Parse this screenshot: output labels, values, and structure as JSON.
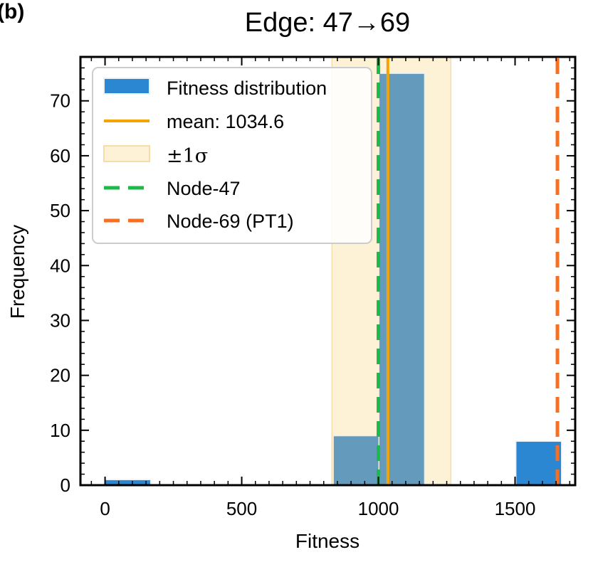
{
  "panel_label": "(b)",
  "chart_data": {
    "type": "bar",
    "title": "Edge: 47→69",
    "xlabel": "Fitness",
    "ylabel": "Frequency",
    "xlim": [
      -90,
      1720
    ],
    "ylim": [
      0,
      78
    ],
    "xticks": [
      0,
      500,
      1000,
      1500
    ],
    "yticks": [
      0,
      10,
      20,
      30,
      40,
      50,
      60,
      70
    ],
    "bin_width": 167,
    "bins": [
      {
        "left": 0,
        "count": 1
      },
      {
        "left": 167,
        "count": 0
      },
      {
        "left": 334,
        "count": 0
      },
      {
        "left": 501,
        "count": 0
      },
      {
        "left": 668,
        "count": 0
      },
      {
        "left": 835,
        "count": 9
      },
      {
        "left": 1002,
        "count": 75
      },
      {
        "left": 1169,
        "count": 0
      },
      {
        "left": 1336,
        "count": 0
      },
      {
        "left": 1503,
        "count": 8
      }
    ],
    "mean": 1034.6,
    "sigma_band": [
      830,
      1265
    ],
    "node_47": 1000,
    "node_69": 1655,
    "colors": {
      "bars": "#2b87d1",
      "mean": "#f5a300",
      "sigma": "#fdf1d6",
      "node_47": "#1db94a",
      "node_69": "#f76f1f"
    },
    "legend": {
      "placement": "top-left",
      "entries": [
        {
          "key": "hist",
          "label": "Fitness distribution"
        },
        {
          "key": "mean",
          "label": "mean: 1034.6"
        },
        {
          "key": "sigma",
          "label": "±1σ"
        },
        {
          "key": "node47",
          "label": "Node-47"
        },
        {
          "key": "node69",
          "label": "Node-69 (PT1)"
        }
      ]
    }
  }
}
